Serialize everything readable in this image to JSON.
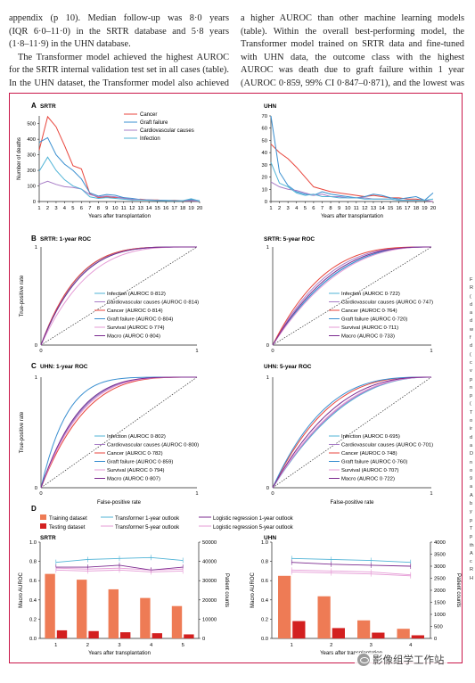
{
  "text": {
    "col1": [
      "appendix (p 10). Median follow-up was 8·0 years",
      "(IQR 6·0–11·0) in the SRTR database and 5·8 years",
      "(1·8–11·9) in the UHN database.",
      "The Transformer model achieved the highest AUROC",
      "for the SRTR internal validation test set in all cases (table).",
      "In the UHN dataset, the Transformer model also achieved"
    ],
    "col2": [
      "a higher AUROC than other machine learning models",
      "(table). Within the overall best-performing model, the",
      "Transformer model trained on SRTR data and fine-tuned",
      "with UHN data, the outcome class with the highest",
      "AUROC was death due to graft failure within 1 year",
      "(AUROC 0·859, 99% CI 0·847–0·871), and the lowest was"
    ],
    "side": [
      "F",
      "R",
      "(",
      "d",
      "a",
      "d",
      "w",
      "f",
      "d",
      "(",
      "c",
      "v",
      "p",
      "n",
      "p",
      "(",
      "T",
      "o",
      "ir",
      "d",
      "a",
      "D",
      "n",
      "o",
      "9",
      "a",
      "A",
      "b",
      "y",
      "p",
      "T",
      "p",
      "th",
      "A",
      "c",
      "R",
      "H"
    ]
  },
  "colors": {
    "frame": "#c9184a",
    "cancer": "#e8453c",
    "graft_failure": "#3a8fd0",
    "cardiovascular": "#a77cc6",
    "infection": "#4fb3d6",
    "survival": "#e59bd6",
    "macro": "#7b2a8f",
    "training_bar": "#ee7b55",
    "testing_bar": "#d32020"
  },
  "panels": {
    "A": {
      "letter": "A",
      "title": "SRTR"
    },
    "A2": {
      "title": "UHN"
    },
    "B": {
      "letter": "B",
      "title": "SRTR: 1-year ROC"
    },
    "B2": {
      "title": "SRTR: 5-year ROC"
    },
    "C": {
      "letter": "C",
      "title": "UHN: 1-year ROC"
    },
    "C2": {
      "title": "UHN: 5-year ROC"
    },
    "D": {
      "letter": "D",
      "title": "SRTR"
    },
    "D2": {
      "title": "UHN"
    }
  },
  "axis_labels": {
    "deaths": "Number of deaths",
    "years_after": "Years after transplantation",
    "tpr": "True-positive rate",
    "fpr": "False-positive rate",
    "macro_auroc": "Macro AUROC",
    "patient_counts": "Patient counts"
  },
  "legend_d": {
    "training": "Training dataset",
    "testing": "Testing dataset",
    "t1": "Transformer 1-year outlook",
    "t5": "Transformer 5-year outlook",
    "lr1": "Logistic regression 1-year outlook",
    "lr5": "Logistic regression 5-year outlook"
  },
  "chart_data": [
    {
      "panel": "A-SRTR",
      "type": "line",
      "title": "SRTR",
      "xlabel": "Years after transplantation",
      "ylabel": "Number of deaths",
      "x": [
        1,
        2,
        3,
        4,
        5,
        6,
        7,
        8,
        9,
        10,
        11,
        12,
        13,
        14,
        15,
        16,
        17,
        18,
        19,
        20
      ],
      "xlim": [
        1,
        20
      ],
      "ylim": [
        0,
        550
      ],
      "yticks": [
        0,
        100,
        200,
        300,
        400,
        500
      ],
      "legend_position": "top-right",
      "series": [
        {
          "name": "Cancer",
          "color": "#e8453c",
          "values": [
            330,
            545,
            480,
            360,
            230,
            210,
            50,
            25,
            30,
            25,
            25,
            10,
            15,
            10,
            10,
            5,
            8,
            5,
            5,
            3
          ]
        },
        {
          "name": "Graft failure",
          "color": "#3a8fd0",
          "values": [
            380,
            410,
            300,
            240,
            200,
            145,
            55,
            35,
            45,
            40,
            25,
            20,
            12,
            10,
            8,
            8,
            6,
            5,
            12,
            5
          ]
        },
        {
          "name": "Cardiovascular causes",
          "color": "#a77cc6",
          "values": [
            110,
            130,
            110,
            95,
            90,
            80,
            45,
            30,
            35,
            30,
            20,
            15,
            12,
            10,
            8,
            6,
            5,
            5,
            5,
            3
          ]
        },
        {
          "name": "Infection",
          "color": "#4fb3d6",
          "values": [
            195,
            285,
            200,
            140,
            100,
            80,
            30,
            20,
            25,
            20,
            15,
            10,
            10,
            8,
            6,
            5,
            5,
            5,
            18,
            3
          ]
        }
      ]
    },
    {
      "panel": "A-UHN",
      "type": "line",
      "title": "UHN",
      "xlabel": "Years after transplantation",
      "x": [
        1,
        2,
        3,
        4,
        5,
        6,
        7,
        8,
        9,
        10,
        11,
        12,
        13,
        14,
        15,
        16,
        17,
        18,
        19,
        20
      ],
      "xlim": [
        1,
        20
      ],
      "ylim": [
        0,
        70
      ],
      "yticks": [
        0,
        10,
        20,
        30,
        40,
        50,
        60,
        70
      ],
      "series": [
        {
          "name": "Cancer",
          "color": "#e8453c",
          "values": [
            47,
            40,
            35,
            28,
            20,
            12,
            10,
            8,
            7,
            6,
            5,
            4,
            5,
            4,
            3,
            3,
            2,
            2,
            1,
            0
          ]
        },
        {
          "name": "Graft failure",
          "color": "#3a8fd0",
          "values": [
            70,
            24,
            13,
            8,
            6,
            5,
            8,
            6,
            5,
            4,
            3,
            4,
            6,
            5,
            3,
            2,
            3,
            4,
            1,
            7
          ]
        },
        {
          "name": "Cardiovascular causes",
          "color": "#a77cc6",
          "values": [
            16,
            12,
            10,
            9,
            7,
            5,
            6,
            4,
            4,
            3,
            3,
            3,
            2,
            2,
            2,
            1,
            1,
            1,
            1,
            0
          ]
        },
        {
          "name": "Infection",
          "color": "#4fb3d6",
          "values": [
            32,
            15,
            12,
            7,
            5,
            6,
            4,
            4,
            3,
            3,
            3,
            2,
            2,
            2,
            2,
            1,
            1,
            1,
            1,
            2
          ]
        }
      ]
    },
    {
      "panel": "B-SRTR-1y",
      "type": "line",
      "title": "SRTR: 1-year ROC",
      "xlabel": "",
      "ylabel": "True-positive rate",
      "xlim": [
        0,
        1
      ],
      "ylim": [
        0,
        1
      ],
      "legend_position": "bottom-right",
      "series": [
        {
          "name": "Infection (AUROC 0·812)",
          "color": "#4fb3d6",
          "auroc": 0.812
        },
        {
          "name": "Cardiovascular causes (AUROC 0·814)",
          "color": "#a77cc6",
          "auroc": 0.814
        },
        {
          "name": "Cancer (AUROC 0·814)",
          "color": "#e8453c",
          "auroc": 0.814
        },
        {
          "name": "Graft failure (AUROC 0·804)",
          "color": "#3a8fd0",
          "auroc": 0.804
        },
        {
          "name": "Survival (AUROC 0·774)",
          "color": "#e59bd6",
          "auroc": 0.774
        },
        {
          "name": "Macro (AUROC 0·804)",
          "color": "#7b2a8f",
          "auroc": 0.804
        }
      ]
    },
    {
      "panel": "B-SRTR-5y",
      "type": "line",
      "title": "SRTR: 5-year ROC",
      "xlim": [
        0,
        1
      ],
      "ylim": [
        0,
        1
      ],
      "legend_position": "bottom-right",
      "series": [
        {
          "name": "Infection (AUROC 0·722)",
          "color": "#4fb3d6",
          "auroc": 0.722
        },
        {
          "name": "Cardiovascular causes (AUROC 0·747)",
          "color": "#a77cc6",
          "auroc": 0.747
        },
        {
          "name": "Cancer (AUROC 0·764)",
          "color": "#e8453c",
          "auroc": 0.764
        },
        {
          "name": "Graft failure (AUROC 0·720)",
          "color": "#3a8fd0",
          "auroc": 0.72
        },
        {
          "name": "Survival (AUROC 0·711)",
          "color": "#e59bd6",
          "auroc": 0.711
        },
        {
          "name": "Macro (AUROC 0·733)",
          "color": "#7b2a8f",
          "auroc": 0.733
        }
      ]
    },
    {
      "panel": "C-UHN-1y",
      "type": "line",
      "title": "UHN: 1-year ROC",
      "xlabel": "False-positive rate",
      "ylabel": "True-positive rate",
      "xlim": [
        0,
        1
      ],
      "ylim": [
        0,
        1
      ],
      "legend_position": "bottom-right",
      "series": [
        {
          "name": "Infection (AUROC 0·802)",
          "color": "#4fb3d6",
          "auroc": 0.802
        },
        {
          "name": "Cardiovascular causes (AUROC 0·800)",
          "color": "#a77cc6",
          "auroc": 0.8
        },
        {
          "name": "Cancer (AUROC 0·782)",
          "color": "#e8453c",
          "auroc": 0.782
        },
        {
          "name": "Graft failure (AUROC 0·859)",
          "color": "#3a8fd0",
          "auroc": 0.859
        },
        {
          "name": "Survival (AUROC 0·794)",
          "color": "#e59bd6",
          "auroc": 0.794
        },
        {
          "name": "Macro (AUROC 0·807)",
          "color": "#7b2a8f",
          "auroc": 0.807
        }
      ]
    },
    {
      "panel": "C-UHN-5y",
      "type": "line",
      "title": "UHN: 5-year ROC",
      "xlabel": "False-positive rate",
      "xlim": [
        0,
        1
      ],
      "ylim": [
        0,
        1
      ],
      "legend_position": "bottom-right",
      "series": [
        {
          "name": "Infection (AUROC 0·695)",
          "color": "#4fb3d6",
          "auroc": 0.695
        },
        {
          "name": "Cardiovascular causes (AUROC 0·701)",
          "color": "#a77cc6",
          "auroc": 0.701
        },
        {
          "name": "Cancer (AUROC 0·748)",
          "color": "#e8453c",
          "auroc": 0.748
        },
        {
          "name": "Graft failure (AUROC 0·760)",
          "color": "#3a8fd0",
          "auroc": 0.76
        },
        {
          "name": "Survival (AUROC 0·707)",
          "color": "#e59bd6",
          "auroc": 0.707
        },
        {
          "name": "Macro (AUROC 0·722)",
          "color": "#7b2a8f",
          "auroc": 0.722
        }
      ]
    },
    {
      "panel": "D-SRTR",
      "type": "bar",
      "title": "SRTR",
      "xlabel": "Years after transplantation",
      "ylabel": "Macro AUROC",
      "y2label": "Patient counts",
      "categories": [
        "1",
        "2",
        "3",
        "4",
        "5"
      ],
      "ylim": [
        0,
        1.0
      ],
      "y2lim": [
        0,
        50000
      ],
      "yticks": [
        0.0,
        0.2,
        0.4,
        0.6,
        0.8,
        1.0
      ],
      "y2ticks": [
        0,
        10000,
        20000,
        30000,
        40000,
        50000
      ],
      "bars": [
        {
          "name": "Training dataset",
          "color": "#ee7b55",
          "values": [
            33500,
            30500,
            25500,
            21000,
            16800
          ]
        },
        {
          "name": "Testing dataset",
          "color": "#d32020",
          "values": [
            4200,
            3800,
            3200,
            2700,
            2100
          ]
        }
      ],
      "series": [
        {
          "name": "Transformer 1-year outlook",
          "color": "#4fb3d6",
          "values": [
            0.79,
            0.82,
            0.83,
            0.84,
            0.81
          ]
        },
        {
          "name": "Transformer 5-year outlook",
          "color": "#e59bd6",
          "values": [
            0.73,
            0.72,
            0.73,
            0.71,
            0.72
          ]
        },
        {
          "name": "Logistic regression 1-year outlook",
          "color": "#7b2a8f",
          "values": [
            0.74,
            0.74,
            0.76,
            0.71,
            0.74
          ]
        },
        {
          "name": "Logistic regression 5-year outlook",
          "color": "#e59bd6",
          "values": [
            0.71,
            0.7,
            0.71,
            0.69,
            0.7
          ]
        }
      ]
    },
    {
      "panel": "D-UHN",
      "type": "bar",
      "title": "UHN",
      "xlabel": "Years after transplantation",
      "ylabel": "Macro AUROC",
      "y2label": "Patient counts",
      "categories": [
        "1",
        "2",
        "3",
        "4"
      ],
      "ylim": [
        0,
        1.0
      ],
      "y2lim": [
        0,
        4000
      ],
      "yticks": [
        0.0,
        0.2,
        0.4,
        0.6,
        0.8,
        1.0
      ],
      "y2ticks": [
        0,
        500,
        1000,
        1500,
        2000,
        2500,
        3000,
        3500,
        4000
      ],
      "bars": [
        {
          "name": "Training dataset",
          "color": "#ee7b55",
          "values": [
            2600,
            1750,
            750,
            400
          ]
        },
        {
          "name": "Testing dataset",
          "color": "#d32020",
          "values": [
            720,
            430,
            240,
            130
          ]
        }
      ],
      "series": [
        {
          "name": "Transformer 1-year outlook",
          "color": "#4fb3d6",
          "values": [
            0.83,
            0.82,
            0.81,
            0.79
          ]
        },
        {
          "name": "Transformer 5-year outlook",
          "color": "#e59bd6",
          "values": [
            0.71,
            0.7,
            0.69,
            0.66
          ]
        },
        {
          "name": "Logistic regression 1-year outlook",
          "color": "#7b2a8f",
          "values": [
            0.79,
            0.77,
            0.76,
            0.75
          ]
        },
        {
          "name": "Logistic regression 5-year outlook",
          "color": "#e59bd6",
          "values": [
            0.69,
            0.68,
            0.67,
            0.65
          ]
        }
      ]
    }
  ],
  "watermark": "影像组学工作站"
}
